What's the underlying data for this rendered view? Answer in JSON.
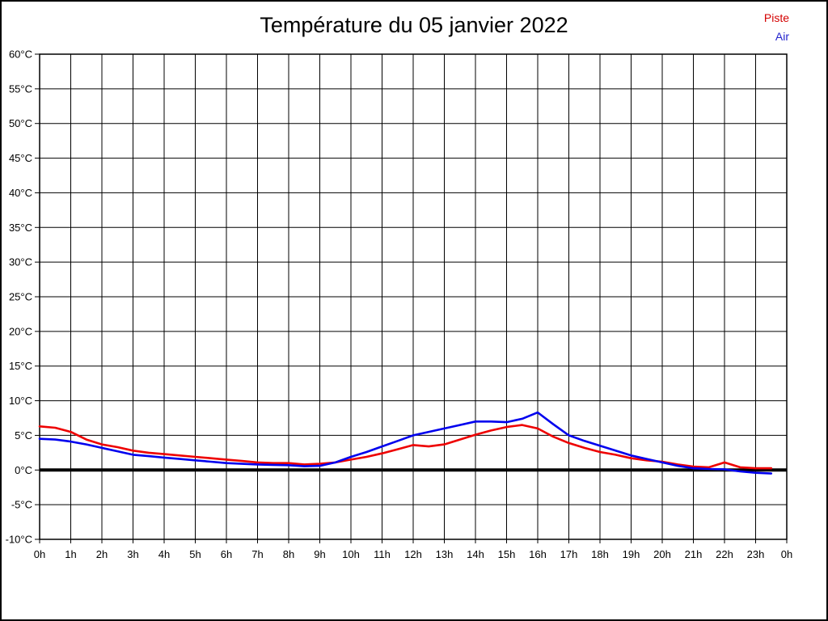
{
  "title": "Température du 05 janvier 2022",
  "legend": {
    "items": [
      {
        "label": "Piste",
        "color": "#d40000"
      },
      {
        "label": "Air",
        "color": "#2222cc"
      }
    ]
  },
  "chart_data": {
    "type": "line",
    "title": "Température du 05 janvier 2022",
    "xlabel": "",
    "ylabel": "",
    "xlim": [
      0,
      24
    ],
    "ylim": [
      -10,
      60
    ],
    "y_step": 5,
    "x_step": 1,
    "grid": true,
    "zero_line": true,
    "legend_position": "top-right",
    "x_tick_labels": [
      "0h",
      "1h",
      "2h",
      "3h",
      "4h",
      "5h",
      "6h",
      "7h",
      "8h",
      "9h",
      "10h",
      "11h",
      "12h",
      "13h",
      "14h",
      "15h",
      "16h",
      "17h",
      "18h",
      "19h",
      "20h",
      "21h",
      "22h",
      "23h",
      "0h"
    ],
    "y_tick_labels": [
      "60°C",
      "55°C",
      "50°C",
      "45°C",
      "40°C",
      "35°C",
      "30°C",
      "25°C",
      "20°C",
      "15°C",
      "10°C",
      "5°C",
      "0°C",
      "-5°C",
      "-10°C"
    ],
    "x_unit": "hours",
    "y_unit": "°C",
    "x": [
      0,
      0.5,
      1,
      1.5,
      2,
      2.5,
      3,
      3.5,
      4,
      4.5,
      5,
      5.5,
      6,
      6.5,
      7,
      7.5,
      8,
      8.5,
      9,
      9.5,
      10,
      10.5,
      11,
      11.5,
      12,
      12.5,
      13,
      13.5,
      14,
      14.5,
      15,
      15.5,
      16,
      16.5,
      17,
      17.5,
      18,
      18.5,
      19,
      19.5,
      20,
      20.5,
      21,
      21.5,
      22,
      22.5,
      23,
      23.5
    ],
    "series": [
      {
        "name": "Piste",
        "color": "#ee0000",
        "values": [
          6.3,
          6.1,
          5.5,
          4.4,
          3.7,
          3.3,
          2.8,
          2.5,
          2.3,
          2.1,
          1.9,
          1.7,
          1.5,
          1.3,
          1.1,
          1.0,
          1.0,
          0.8,
          0.9,
          1.1,
          1.5,
          1.9,
          2.4,
          3.0,
          3.6,
          3.4,
          3.7,
          4.4,
          5.1,
          5.7,
          6.2,
          6.5,
          6.0,
          4.8,
          3.9,
          3.2,
          2.6,
          2.2,
          1.7,
          1.4,
          1.2,
          0.8,
          0.5,
          0.4,
          1.1,
          0.4,
          0.25,
          0.25
        ]
      },
      {
        "name": "Air",
        "color": "#0000ee",
        "values": [
          4.5,
          4.4,
          4.1,
          3.7,
          3.2,
          2.7,
          2.2,
          2.0,
          1.8,
          1.6,
          1.4,
          1.2,
          1.0,
          0.9,
          0.8,
          0.75,
          0.7,
          0.55,
          0.6,
          1.1,
          1.9,
          2.6,
          3.4,
          4.2,
          5.0,
          5.5,
          6.0,
          6.5,
          7.0,
          7.0,
          6.9,
          7.4,
          8.3,
          6.6,
          5.0,
          4.2,
          3.5,
          2.8,
          2.1,
          1.6,
          1.1,
          0.6,
          0.25,
          0.15,
          0.1,
          -0.2,
          -0.4,
          -0.5
        ]
      }
    ]
  }
}
